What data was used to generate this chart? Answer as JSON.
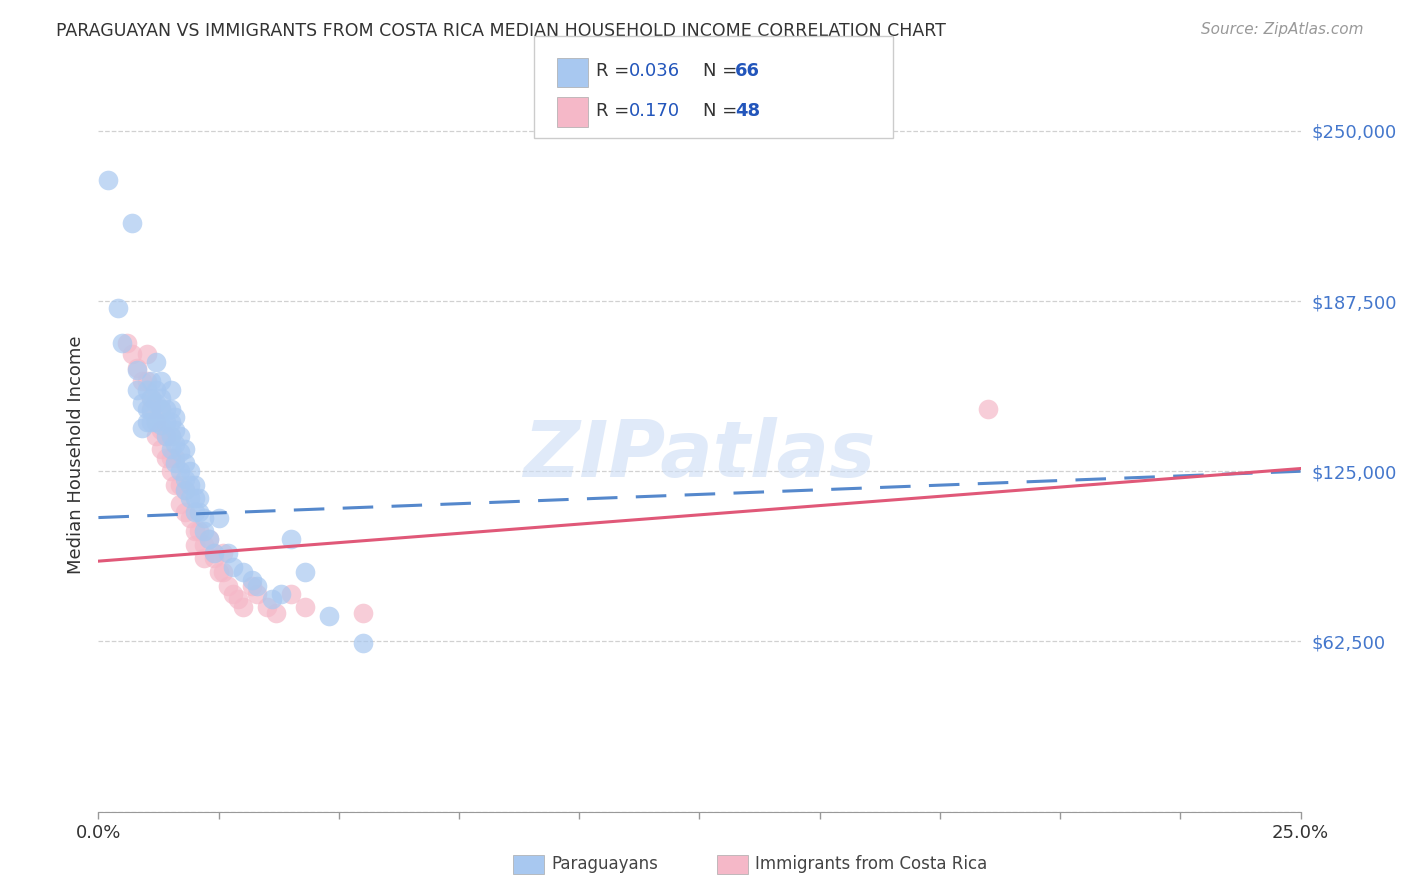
{
  "title": "PARAGUAYAN VS IMMIGRANTS FROM COSTA RICA MEDIAN HOUSEHOLD INCOME CORRELATION CHART",
  "source": "Source: ZipAtlas.com",
  "ylabel": "Median Household Income",
  "yticks": [
    0,
    62500,
    125000,
    187500,
    250000
  ],
  "ytick_labels": [
    "",
    "$62,500",
    "$125,000",
    "$187,500",
    "$250,000"
  ],
  "xticks": [
    0.0,
    0.025,
    0.05,
    0.075,
    0.1,
    0.125,
    0.15,
    0.175,
    0.2,
    0.225,
    0.25
  ],
  "xlim": [
    0.0,
    0.25
  ],
  "ylim": [
    0,
    262000
  ],
  "legend_r1": "0.036",
  "legend_n1": "66",
  "legend_r2": "0.170",
  "legend_n2": "48",
  "blue_color": "#a8c8f0",
  "pink_color": "#f5b8c8",
  "trendline_blue_color": "#5588cc",
  "trendline_pink_color": "#e05878",
  "watermark": "ZIPatlas",
  "blue_trend_x0": 0.0,
  "blue_trend_y0": 108000,
  "blue_trend_x1": 0.25,
  "blue_trend_y1": 125000,
  "pink_trend_x0": 0.0,
  "pink_trend_y0": 92000,
  "pink_trend_x1": 0.25,
  "pink_trend_y1": 126000,
  "paraguayan_x": [
    0.002,
    0.004,
    0.005,
    0.007,
    0.008,
    0.008,
    0.009,
    0.009,
    0.01,
    0.01,
    0.01,
    0.011,
    0.011,
    0.011,
    0.011,
    0.012,
    0.012,
    0.012,
    0.012,
    0.013,
    0.013,
    0.013,
    0.013,
    0.014,
    0.014,
    0.014,
    0.015,
    0.015,
    0.015,
    0.015,
    0.015,
    0.016,
    0.016,
    0.016,
    0.016,
    0.017,
    0.017,
    0.017,
    0.018,
    0.018,
    0.018,
    0.018,
    0.019,
    0.019,
    0.019,
    0.02,
    0.02,
    0.02,
    0.021,
    0.021,
    0.022,
    0.022,
    0.023,
    0.024,
    0.025,
    0.027,
    0.028,
    0.03,
    0.032,
    0.033,
    0.036,
    0.038,
    0.04,
    0.043,
    0.048,
    0.055
  ],
  "paraguayan_y": [
    232000,
    185000,
    172000,
    216000,
    162000,
    155000,
    150000,
    141000,
    155000,
    148000,
    143000,
    158000,
    152000,
    147000,
    143000,
    165000,
    155000,
    150000,
    143000,
    158000,
    152000,
    148000,
    142000,
    148000,
    143000,
    138000,
    155000,
    148000,
    143000,
    138000,
    133000,
    145000,
    140000,
    135000,
    128000,
    138000,
    132000,
    125000,
    133000,
    128000,
    122000,
    118000,
    125000,
    120000,
    115000,
    120000,
    115000,
    110000,
    115000,
    110000,
    108000,
    103000,
    100000,
    95000,
    108000,
    95000,
    90000,
    88000,
    85000,
    83000,
    78000,
    80000,
    100000,
    88000,
    72000,
    62000
  ],
  "costarica_x": [
    0.006,
    0.007,
    0.008,
    0.009,
    0.01,
    0.01,
    0.011,
    0.011,
    0.012,
    0.012,
    0.013,
    0.013,
    0.013,
    0.014,
    0.014,
    0.015,
    0.015,
    0.015,
    0.016,
    0.016,
    0.017,
    0.017,
    0.018,
    0.018,
    0.019,
    0.02,
    0.02,
    0.021,
    0.022,
    0.022,
    0.023,
    0.024,
    0.024,
    0.025,
    0.026,
    0.026,
    0.027,
    0.028,
    0.029,
    0.03,
    0.032,
    0.033,
    0.035,
    0.037,
    0.04,
    0.043,
    0.055,
    0.185
  ],
  "costarica_y": [
    172000,
    168000,
    163000,
    158000,
    168000,
    158000,
    152000,
    148000,
    143000,
    138000,
    148000,
    140000,
    133000,
    138000,
    130000,
    138000,
    130000,
    125000,
    130000,
    120000,
    120000,
    113000,
    118000,
    110000,
    108000,
    103000,
    98000,
    103000,
    98000,
    93000,
    100000,
    95000,
    93000,
    88000,
    95000,
    88000,
    83000,
    80000,
    78000,
    75000,
    83000,
    80000,
    75000,
    73000,
    80000,
    75000,
    73000,
    148000
  ]
}
